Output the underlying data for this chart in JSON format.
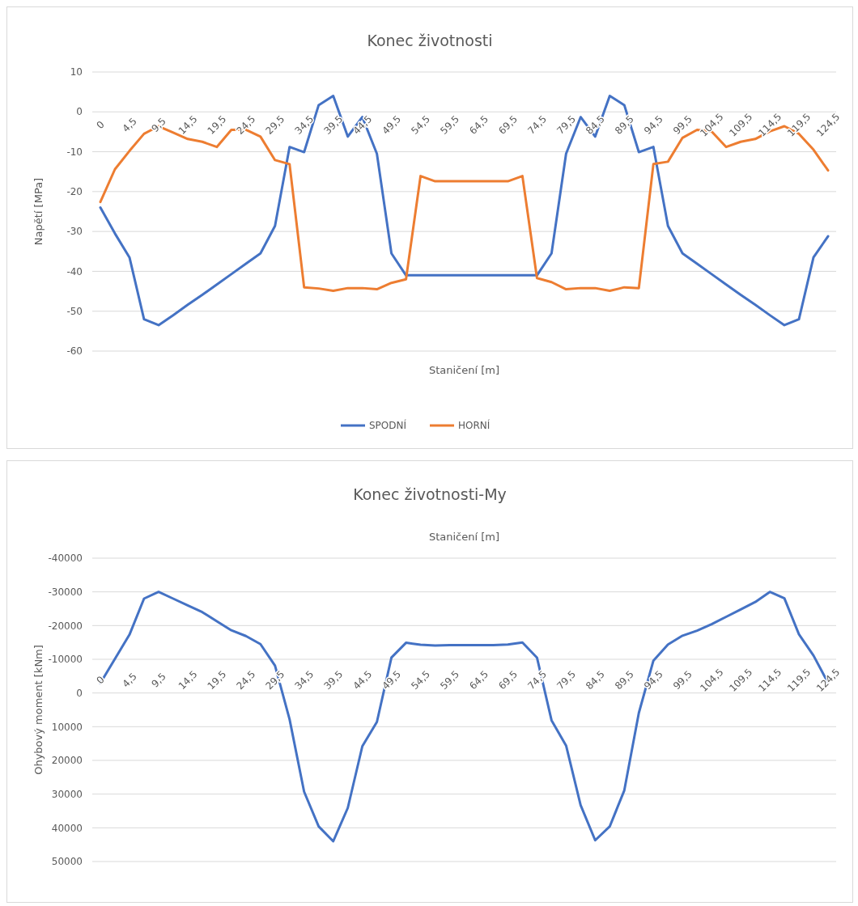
{
  "chart_data": [
    {
      "type": "line",
      "title": "Konec životnosti",
      "xlabel": "Staničení [m]",
      "ylabel": "Napětí [MPa]",
      "categories": [
        "0",
        null,
        "4,5",
        null,
        "9,5",
        null,
        "14,5",
        null,
        "19,5",
        null,
        "24,5",
        null,
        "29,5",
        null,
        "34,5",
        null,
        "39,5",
        null,
        "44,5",
        null,
        "49,5",
        null,
        "54,5",
        null,
        "59,5",
        null,
        "64,5",
        null,
        "69,5",
        null,
        "74,5",
        null,
        "79,5",
        null,
        "84,5",
        null,
        "89,5",
        null,
        "94,5",
        null,
        "99,5",
        null,
        "104,5",
        null,
        "109,5",
        null,
        "114,5",
        null,
        "119,5",
        null,
        "124,5"
      ],
      "series": [
        {
          "name": "SPODNÍ",
          "color": "#4472c4",
          "values": [
            -24,
            -30.5,
            -36.5,
            -52,
            -53.5,
            -51,
            -48.4,
            -45.9,
            -43.3,
            -40.7,
            -38.1,
            -35.5,
            -28.6,
            -8.8,
            -10.1,
            1.7,
            4,
            -6.2,
            -1.3,
            -10.5,
            -35.5,
            -41,
            -41,
            -41,
            -41,
            -41,
            -41,
            -41,
            -41,
            -41,
            -41,
            -35.5,
            -10.5,
            -1.3,
            -6.2,
            4,
            1.7,
            -10.1,
            -8.8,
            -28.6,
            -35.5,
            -38.1,
            -40.7,
            -43.3,
            -45.9,
            -48.4,
            -51,
            -53.5,
            -52,
            -36.5,
            -31.2
          ]
        },
        {
          "name": "HORNÍ",
          "color": "#ed7d31",
          "values": [
            -22.6,
            -14.4,
            -9.8,
            -5.5,
            -3.6,
            -5.2,
            -6.8,
            -7.5,
            -8.8,
            -4.5,
            -4.5,
            -6.2,
            -12.1,
            -13.1,
            -44,
            -44.3,
            -44.9,
            -44.2,
            -44.2,
            -44.5,
            -42.9,
            -42,
            -16.1,
            -17.4,
            -17.4,
            -17.4,
            -17.4,
            -17.4,
            -17.4,
            -16.1,
            -41.7,
            -42.7,
            -44.5,
            -44.2,
            -44.2,
            -44.9,
            -44,
            -44.2,
            -13.1,
            -12.5,
            -6.5,
            -4.5,
            -4.9,
            -8.8,
            -7.5,
            -6.8,
            -4.9,
            -3.6,
            -5.5,
            -9.5,
            -14.7
          ]
        }
      ],
      "ylim": [
        -60,
        10
      ],
      "yticks": [
        -60,
        -50,
        -40,
        -30,
        -20,
        -10,
        0,
        10
      ],
      "grid": "y",
      "legend": "bottom"
    },
    {
      "type": "line",
      "title": "Konec životnosti-My",
      "xlabel": "Staničení [m]",
      "ylabel": "Ohybový moment [kNm]",
      "categories": [
        "0",
        null,
        "4,5",
        null,
        "9,5",
        null,
        "14,5",
        null,
        "19,5",
        null,
        "24,5",
        null,
        "29,5",
        null,
        "34,5",
        null,
        "39,5",
        null,
        "44,5",
        null,
        "49,5",
        null,
        "54,5",
        null,
        "59,5",
        null,
        "64,5",
        null,
        "69,5",
        null,
        "74,5",
        null,
        "79,5",
        null,
        "84,5",
        null,
        "89,5",
        null,
        "94,5",
        null,
        "99,5",
        null,
        "104,5",
        null,
        "109,5",
        null,
        "114,5",
        null,
        "119,5",
        null,
        "124,5"
      ],
      "series": [
        {
          "color": "#4472c4",
          "values": [
            -2900,
            -10100,
            -17300,
            -28000,
            -30000,
            -28000,
            -26000,
            -24000,
            -21300,
            -18600,
            -16900,
            -14500,
            -8100,
            7800,
            29300,
            39600,
            44000,
            34100,
            15800,
            8600,
            -10500,
            -14900,
            -14300,
            -14100,
            -14200,
            -14200,
            -14200,
            -14200,
            -14400,
            -15000,
            -10500,
            8100,
            15600,
            33300,
            43700,
            39600,
            28900,
            5900,
            -9600,
            -14400,
            -17000,
            -18500,
            -20400,
            -22600,
            -24800,
            -27000,
            -30000,
            -28100,
            -17400,
            -11100,
            -3000
          ]
        }
      ],
      "ylim": [
        50000,
        -40000
      ],
      "yticks": [
        50000,
        40000,
        30000,
        20000,
        10000,
        0,
        -10000,
        -20000,
        -30000,
        -40000
      ],
      "grid": "y"
    }
  ]
}
